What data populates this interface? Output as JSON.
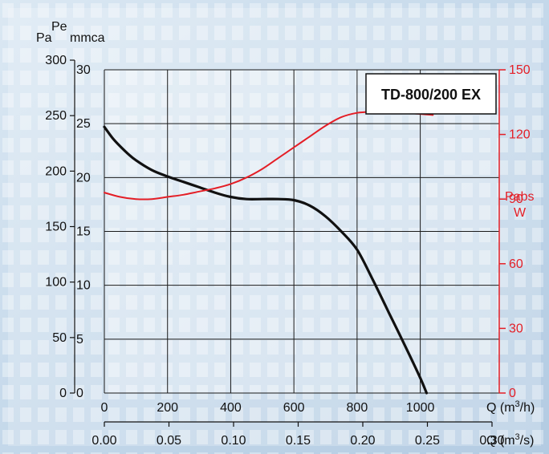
{
  "chart_data": {
    "type": "line",
    "title": "TD-800/200 EX",
    "colors": {
      "pressure": "#111111",
      "power": "#e41e26",
      "grid": "#1a1a1a",
      "background": "#cfe0ee"
    },
    "grid": true,
    "axes": {
      "left_pa": {
        "label_top": "Pa",
        "ticks": [
          "0",
          "50",
          "100",
          "150",
          "200",
          "250",
          "300"
        ],
        "range": [
          0,
          300
        ]
      },
      "left_mmca": {
        "label_top": "Pe",
        "label_unit": "mmca",
        "ticks": [
          "0",
          "5",
          "10",
          "15",
          "20",
          "25",
          "30"
        ],
        "range": [
          0,
          30
        ]
      },
      "right_w": {
        "label_top": "Pabs",
        "label_unit": "W",
        "ticks": [
          "0",
          "30",
          "60",
          "90",
          "120",
          "150"
        ],
        "range": [
          0,
          150
        ]
      },
      "bottom_m3h": {
        "label": "Q (m",
        "label_sup": "3",
        "label_end": "/h)",
        "ticks": [
          "0",
          "200",
          "400",
          "600",
          "800",
          "1000"
        ],
        "range": [
          0,
          1250
        ]
      },
      "bottom_m3s": {
        "label": "Q (m",
        "label_sup": "3",
        "label_end": "/s)",
        "ticks": [
          "0.00",
          "0.05",
          "0.10",
          "0.15",
          "0.20",
          "0.25",
          "0.30"
        ],
        "range": [
          0,
          0.35
        ]
      }
    },
    "series": [
      {
        "key": "pressure",
        "unit": "mmca",
        "x": [
          0,
          25,
          50,
          75,
          100,
          150,
          200,
          250,
          300,
          350,
          400,
          450,
          500,
          550,
          600,
          650,
          700,
          750,
          800,
          850,
          900,
          950,
          1000,
          1020
        ],
        "y": [
          24.7,
          23.7,
          22.9,
          22.2,
          21.6,
          20.7,
          20.1,
          19.6,
          19.1,
          18.6,
          18.2,
          18.0,
          18.0,
          18.0,
          17.9,
          17.4,
          16.4,
          15.0,
          13.3,
          10.5,
          7.5,
          4.5,
          1.4,
          0
        ]
      },
      {
        "key": "power",
        "unit": "W",
        "x": [
          0,
          50,
          100,
          150,
          200,
          250,
          300,
          350,
          400,
          450,
          500,
          550,
          600,
          650,
          700,
          750,
          800,
          850,
          900,
          950,
          1000,
          1040
        ],
        "y": [
          93,
          91,
          90,
          90,
          91,
          92,
          93.5,
          95,
          97,
          100,
          104,
          109,
          114,
          119,
          124,
          128,
          130,
          130.5,
          130.5,
          130,
          129.5,
          129
        ]
      }
    ]
  }
}
